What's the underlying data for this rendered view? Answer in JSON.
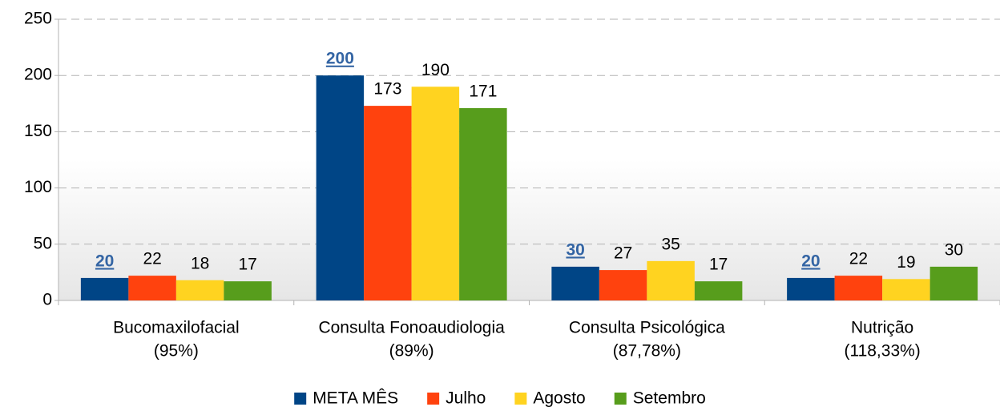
{
  "chart_data": {
    "type": "bar",
    "categories": [
      [
        "Bucomaxilofacial",
        "(95%)"
      ],
      [
        "Consulta Fonoaudiologia",
        "(89%)"
      ],
      [
        "Consulta Psicológica",
        "(87,78%)"
      ],
      [
        "Nutrição",
        "(118,33%)"
      ]
    ],
    "series": [
      {
        "name": "META MÊS",
        "color": "#004586",
        "values": [
          20,
          200,
          30,
          20
        ]
      },
      {
        "name": "Julho",
        "color": "#ff420e",
        "values": [
          22,
          173,
          27,
          22
        ]
      },
      {
        "name": "Agosto",
        "color": "#ffd320",
        "values": [
          18,
          190,
          35,
          19
        ]
      },
      {
        "name": "Setembro",
        "color": "#579d1c",
        "values": [
          17,
          171,
          17,
          30
        ]
      }
    ],
    "ylim": [
      0,
      250
    ],
    "yticks": [
      0,
      50,
      100,
      150,
      200,
      250
    ],
    "grid": true,
    "legend": "bottom"
  }
}
